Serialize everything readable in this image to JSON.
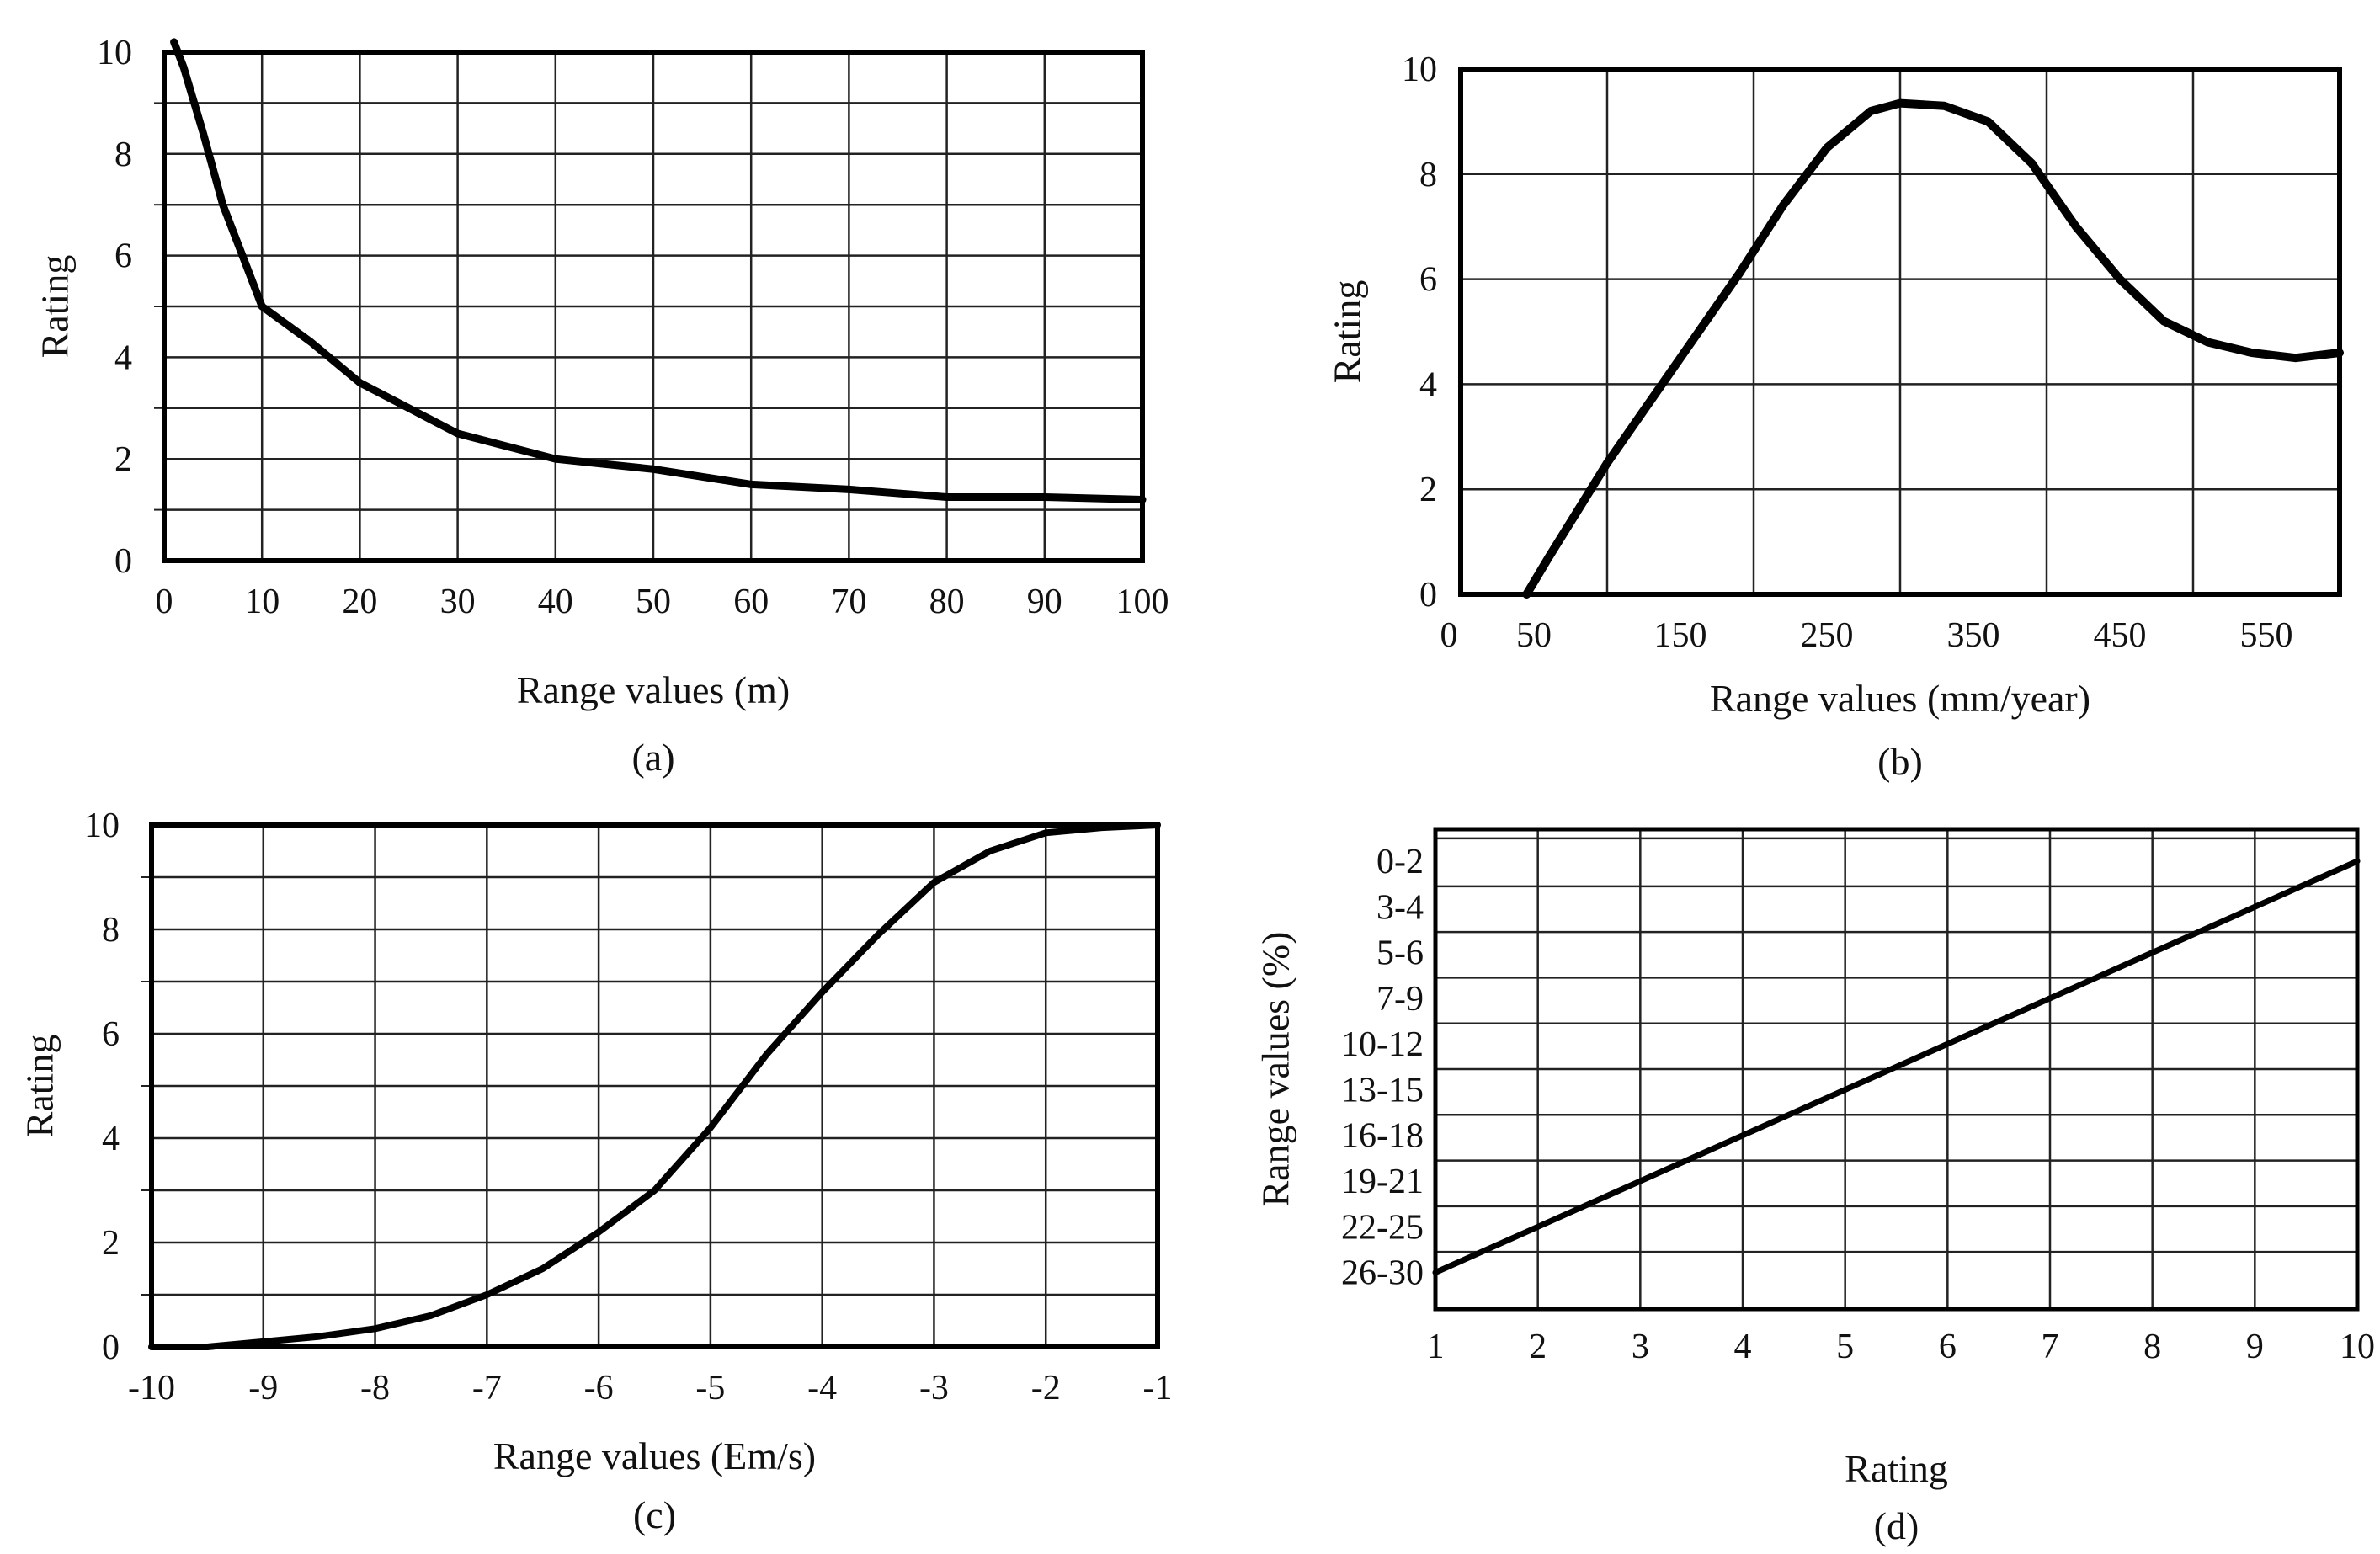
{
  "chart_data": [
    {
      "id": "a",
      "type": "line",
      "caption": "(a)",
      "xlabel": "Range values (m)",
      "ylabel": "Rating",
      "xlim": [
        0,
        100
      ],
      "ylim": [
        0,
        10
      ],
      "xticks": [
        "0",
        "10",
        "20",
        "30",
        "40",
        "50",
        "60",
        "70",
        "80",
        "90",
        "100"
      ],
      "yticks": [
        "0",
        "2",
        "4",
        "6",
        "8",
        "10"
      ],
      "grid": true,
      "x": [
        1,
        2,
        4,
        6,
        8,
        10,
        15,
        20,
        25,
        30,
        40,
        50,
        60,
        70,
        80,
        90,
        100
      ],
      "y": [
        10.2,
        9.7,
        8.4,
        7.0,
        6.0,
        5.0,
        4.3,
        3.5,
        3.0,
        2.5,
        2.0,
        1.8,
        1.5,
        1.4,
        1.25,
        1.25,
        1.2
      ]
    },
    {
      "id": "b",
      "type": "line",
      "caption": "(b)",
      "xlabel": "Range values (mm/year)",
      "ylabel": "Rating",
      "xlim": [
        0,
        600
      ],
      "ylim": [
        0,
        10
      ],
      "xticks": [
        "0",
        "50",
        "150",
        "250",
        "350",
        "450",
        "550"
      ],
      "yticks": [
        "0",
        "2",
        "4",
        "6",
        "8",
        "10"
      ],
      "grid": true,
      "x": [
        45,
        60,
        80,
        100,
        130,
        160,
        190,
        220,
        250,
        280,
        300,
        330,
        360,
        390,
        420,
        450,
        480,
        510,
        540,
        570,
        600
      ],
      "y": [
        0.0,
        0.7,
        1.6,
        2.5,
        3.7,
        4.9,
        6.1,
        7.4,
        8.5,
        9.2,
        9.35,
        9.3,
        9.0,
        8.2,
        7.0,
        6.0,
        5.2,
        4.8,
        4.6,
        4.5,
        4.6
      ]
    },
    {
      "id": "c",
      "type": "line",
      "caption": "(c)",
      "xlabel": "Range values (Em/s)",
      "ylabel": "Rating",
      "xlim": [
        -10,
        -1
      ],
      "ylim": [
        0,
        10
      ],
      "xticks": [
        "-10",
        "-9",
        "-8",
        "-7",
        "-6",
        "-5",
        "-4",
        "-3",
        "-2",
        "-1"
      ],
      "yticks": [
        "0",
        "2",
        "4",
        "6",
        "8",
        "10"
      ],
      "grid": true,
      "x": [
        -10,
        -9.5,
        -9,
        -8.5,
        -8,
        -7.5,
        -7,
        -6.5,
        -6,
        -5.5,
        -5,
        -4.5,
        -4,
        -3.5,
        -3,
        -2.5,
        -2,
        -1.5,
        -1
      ],
      "y": [
        0.0,
        0.0,
        0.1,
        0.2,
        0.35,
        0.6,
        1.0,
        1.5,
        2.2,
        3.0,
        4.2,
        5.6,
        6.8,
        7.9,
        8.9,
        9.5,
        9.85,
        9.95,
        10.0
      ]
    },
    {
      "id": "d",
      "type": "line",
      "caption": "(d)",
      "xlabel": "Rating",
      "ylabel": "Range values (%)",
      "xlim": [
        1,
        10
      ],
      "xticks": [
        "1",
        "2",
        "3",
        "4",
        "5",
        "6",
        "7",
        "8",
        "9",
        "10"
      ],
      "categories": [
        "0-2",
        "3-4",
        "5-6",
        "7-9",
        "10-12",
        "13-15",
        "16-18",
        "19-21",
        "22-25",
        "26-30"
      ],
      "grid": true,
      "x": [
        1,
        10
      ],
      "y": [
        "26-30",
        "0-2"
      ]
    }
  ]
}
